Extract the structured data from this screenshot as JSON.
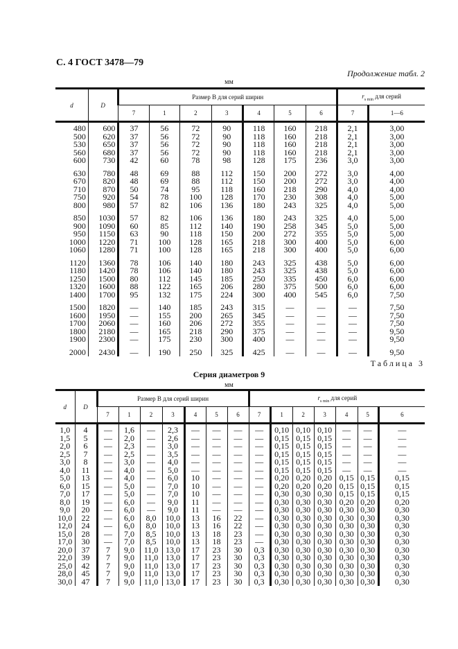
{
  "page_header": "С. 4 ГОСТ 3478—79",
  "table2_cont": {
    "caption": "Продолжение табл. 2",
    "unit": "мм",
    "h_d": "d",
    "h_D": "D",
    "h_B": "Размер B для серий ширин",
    "h_r": "r",
    "h_r_sub": "s min",
    "h_r_suffix": "для серий",
    "b_series": [
      "7",
      "1",
      "2",
      "3",
      "4",
      "5",
      "6"
    ],
    "r_series": [
      "7",
      "1—6"
    ],
    "groups": [
      [
        [
          "480",
          "600",
          "37",
          "56",
          "72",
          "90",
          "118",
          "160",
          "218",
          "2,1",
          "3,00"
        ],
        [
          "500",
          "620",
          "37",
          "56",
          "72",
          "90",
          "118",
          "160",
          "218",
          "2,1",
          "3,00"
        ],
        [
          "530",
          "650",
          "37",
          "56",
          "72",
          "90",
          "118",
          "160",
          "218",
          "2,1",
          "3,00"
        ],
        [
          "560",
          "680",
          "37",
          "56",
          "72",
          "90",
          "118",
          "160",
          "218",
          "2,1",
          "3,00"
        ],
        [
          "600",
          "730",
          "42",
          "60",
          "78",
          "98",
          "128",
          "175",
          "236",
          "3,0",
          "3,00"
        ]
      ],
      [
        [
          "630",
          "780",
          "48",
          "69",
          "88",
          "112",
          "150",
          "200",
          "272",
          "3,0",
          "4,00"
        ],
        [
          "670",
          "820",
          "48",
          "69",
          "88",
          "112",
          "150",
          "200",
          "272",
          "3,0",
          "4,00"
        ],
        [
          "710",
          "870",
          "50",
          "74",
          "95",
          "118",
          "160",
          "218",
          "290",
          "4,0",
          "4,00"
        ],
        [
          "750",
          "920",
          "54",
          "78",
          "100",
          "128",
          "170",
          "230",
          "308",
          "4,0",
          "5,00"
        ],
        [
          "800",
          "980",
          "57",
          "82",
          "106",
          "136",
          "180",
          "243",
          "325",
          "4,0",
          "5,00"
        ]
      ],
      [
        [
          "850",
          "1030",
          "57",
          "82",
          "106",
          "136",
          "180",
          "243",
          "325",
          "4,0",
          "5,00"
        ],
        [
          "900",
          "1090",
          "60",
          "85",
          "112",
          "140",
          "190",
          "258",
          "345",
          "5,0",
          "5,00"
        ],
        [
          "950",
          "1150",
          "63",
          "90",
          "118",
          "150",
          "200",
          "272",
          "355",
          "5,0",
          "5,00"
        ],
        [
          "1000",
          "1220",
          "71",
          "100",
          "128",
          "165",
          "218",
          "300",
          "400",
          "5,0",
          "6,00"
        ],
        [
          "1060",
          "1280",
          "71",
          "100",
          "128",
          "165",
          "218",
          "300",
          "400",
          "5,0",
          "6,00"
        ]
      ],
      [
        [
          "1120",
          "1360",
          "78",
          "106",
          "140",
          "180",
          "243",
          "325",
          "438",
          "5,0",
          "6,00"
        ],
        [
          "1180",
          "1420",
          "78",
          "106",
          "140",
          "180",
          "243",
          "325",
          "438",
          "5,0",
          "6,00"
        ],
        [
          "1250",
          "1500",
          "80",
          "112",
          "145",
          "185",
          "250",
          "335",
          "450",
          "6,0",
          "6,00"
        ],
        [
          "1320",
          "1600",
          "88",
          "122",
          "165",
          "206",
          "280",
          "375",
          "500",
          "6,0",
          "6,00"
        ],
        [
          "1400",
          "1700",
          "95",
          "132",
          "175",
          "224",
          "300",
          "400",
          "545",
          "6,0",
          "7,50"
        ]
      ],
      [
        [
          "1500",
          "1820",
          "—",
          "140",
          "185",
          "243",
          "315",
          "—",
          "—",
          "—",
          "7,50"
        ],
        [
          "1600",
          "1950",
          "—",
          "155",
          "200",
          "265",
          "345",
          "—",
          "—",
          "—",
          "7,50"
        ],
        [
          "1700",
          "2060",
          "—",
          "160",
          "206",
          "272",
          "355",
          "—",
          "—",
          "—",
          "7,50"
        ],
        [
          "1800",
          "2180",
          "—",
          "165",
          "218",
          "290",
          "375",
          "—",
          "—",
          "—",
          "9,50"
        ],
        [
          "1900",
          "2300",
          "—",
          "175",
          "230",
          "300",
          "400",
          "—",
          "—",
          "—",
          "9,50"
        ]
      ],
      [
        [
          "2000",
          "2430",
          "—",
          "190",
          "250",
          "325",
          "425",
          "—",
          "—",
          "—",
          "9,50"
        ]
      ]
    ]
  },
  "table3": {
    "label": "Таблица 3",
    "title": "Серия диаметров 9",
    "unit": "мм",
    "h_d": "d",
    "h_D": "D",
    "h_B": "Размер B для серий ширин",
    "h_r": "r",
    "h_r_sub": "s min",
    "h_r_suffix": "для серий",
    "b_series": [
      "7",
      "1",
      "2",
      "3",
      "4",
      "5",
      "6"
    ],
    "r_series": [
      "7",
      "1",
      "2",
      "3",
      "4",
      "5",
      "6"
    ],
    "rows": [
      [
        "1,0",
        "4",
        "—",
        "1,6",
        "—",
        "2,3",
        "—",
        "—",
        "—",
        "—",
        "0,10",
        "0,10",
        "0,10",
        "—",
        "—",
        "—"
      ],
      [
        "1,5",
        "5",
        "—",
        "2,0",
        "—",
        "2,6",
        "—",
        "—",
        "—",
        "—",
        "0,15",
        "0,15",
        "0,15",
        "—",
        "—",
        "—"
      ],
      [
        "2,0",
        "6",
        "—",
        "2,3",
        "—",
        "3,0",
        "—",
        "—",
        "—",
        "—",
        "0,15",
        "0,15",
        "0,15",
        "—",
        "—",
        "—"
      ],
      [
        "2,5",
        "7",
        "—",
        "2,5",
        "—",
        "3,5",
        "—",
        "—",
        "—",
        "—",
        "0,15",
        "0,15",
        "0,15",
        "—",
        "—",
        "—"
      ],
      [
        "3,0",
        "8",
        "—",
        "3,0",
        "—",
        "4,0",
        "—",
        "—",
        "—",
        "—",
        "0,15",
        "0,15",
        "0,15",
        "—",
        "—",
        "—"
      ],
      [
        "4,0",
        "11",
        "—",
        "4,0",
        "—",
        "5,0",
        "—",
        "—",
        "—",
        "—",
        "0,15",
        "0,15",
        "0,15",
        "—",
        "—",
        "—"
      ],
      [
        "5,0",
        "13",
        "—",
        "4,0",
        "—",
        "6,0",
        "10",
        "—",
        "—",
        "—",
        "0,20",
        "0,20",
        "0,20",
        "0,15",
        "0,15",
        "0,15"
      ],
      [
        "6,0",
        "15",
        "—",
        "5,0",
        "—",
        "7,0",
        "10",
        "—",
        "—",
        "—",
        "0,20",
        "0,20",
        "0,20",
        "0,15",
        "0,15",
        "0,15"
      ],
      [
        "7,0",
        "17",
        "—",
        "5,0",
        "—",
        "7,0",
        "10",
        "—",
        "—",
        "—",
        "0,30",
        "0,30",
        "0,30",
        "0,15",
        "0,15",
        "0,15"
      ],
      [
        "8,0",
        "19",
        "—",
        "6,0",
        "—",
        "9,0",
        "11",
        "—",
        "—",
        "—",
        "0,30",
        "0,30",
        "0,30",
        "0,20",
        "0,20",
        "0,20"
      ],
      [
        "9,0",
        "20",
        "—",
        "6,0",
        "—",
        "9,0",
        "11",
        "—",
        "—",
        "—",
        "0,30",
        "0,30",
        "0,30",
        "0,30",
        "0,30",
        "0,30"
      ],
      [
        "10,0",
        "22",
        "—",
        "6,0",
        "8,0",
        "10,0",
        "13",
        "16",
        "22",
        "—",
        "0,30",
        "0,30",
        "0,30",
        "0,30",
        "0,30",
        "0,30"
      ],
      [
        "12,0",
        "24",
        "—",
        "6,0",
        "8,0",
        "10,0",
        "13",
        "16",
        "22",
        "—",
        "0,30",
        "0,30",
        "0,30",
        "0,30",
        "0,30",
        "0,30"
      ],
      [
        "15,0",
        "28",
        "—",
        "7,0",
        "8,5",
        "10,0",
        "13",
        "18",
        "23",
        "—",
        "0,30",
        "0,30",
        "0,30",
        "0,30",
        "0,30",
        "0,30"
      ],
      [
        "17,0",
        "30",
        "—",
        "7,0",
        "8,5",
        "10,0",
        "13",
        "18",
        "23",
        "—",
        "0,30",
        "0,30",
        "0,30",
        "0,30",
        "0,30",
        "0,30"
      ],
      [
        "20,0",
        "37",
        "7",
        "9,0",
        "11,0",
        "13,0",
        "17",
        "23",
        "30",
        "0,3",
        "0,30",
        "0,30",
        "0,30",
        "0,30",
        "0,30",
        "0,30"
      ],
      [
        "22,0",
        "39",
        "7",
        "9,0",
        "11,0",
        "13,0",
        "17",
        "23",
        "30",
        "0,3",
        "0,30",
        "0,30",
        "0,30",
        "0,30",
        "0,30",
        "0,30"
      ],
      [
        "25,0",
        "42",
        "7",
        "9,0",
        "11,0",
        "13,0",
        "17",
        "23",
        "30",
        "0,3",
        "0,30",
        "0,30",
        "0,30",
        "0,30",
        "0,30",
        "0,30"
      ],
      [
        "28,0",
        "45",
        "7",
        "9,0",
        "11,0",
        "13,0",
        "17",
        "23",
        "30",
        "0,3",
        "0,30",
        "0,30",
        "0,30",
        "0,30",
        "0,30",
        "0,30"
      ],
      [
        "30,0",
        "47",
        "7",
        "9,0",
        "11,0",
        "13,0",
        "17",
        "23",
        "30",
        "0,3",
        "0,30",
        "0,30",
        "0,30",
        "0,30",
        "0,30",
        "0,30"
      ]
    ]
  }
}
